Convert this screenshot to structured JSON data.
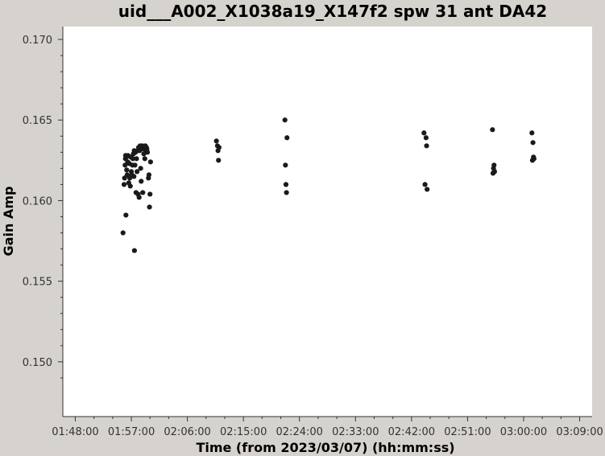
{
  "chart_data": {
    "type": "scatter",
    "title": "uid___A002_X1038a19_X147f2 spw 31 ant DA42",
    "xlabel": "Time (from 2023/03/07) (hh:mm:ss)",
    "ylabel": "Gain Amp",
    "xlim": [
      "01:46:00",
      "03:11:00"
    ],
    "ylim": [
      0.1466,
      0.1708
    ],
    "x_ticks": [
      "01:48:00",
      "01:57:00",
      "02:06:00",
      "02:15:00",
      "02:24:00",
      "02:33:00",
      "02:42:00",
      "02:51:00",
      "03:00:00",
      "03:09:00"
    ],
    "y_ticks": [
      "0.150",
      "0.155",
      "0.160",
      "0.165",
      "0.170"
    ],
    "grid": false,
    "marker_color": "#1a1a1a",
    "series": [
      {
        "points": [
          [
            "01:55:40",
            0.158
          ],
          [
            "01:55:50",
            0.161
          ],
          [
            "01:55:55",
            0.1614
          ],
          [
            "01:56:00",
            0.1622
          ],
          [
            "01:56:03",
            0.1626
          ],
          [
            "01:56:05",
            0.1628
          ],
          [
            "01:56:08",
            0.1591
          ],
          [
            "01:56:12",
            0.1627
          ],
          [
            "01:56:15",
            0.1619
          ],
          [
            "01:56:20",
            0.1616
          ],
          [
            "01:56:25",
            0.1624
          ],
          [
            "01:56:28",
            0.1628
          ],
          [
            "01:56:35",
            0.1611
          ],
          [
            "01:56:40",
            0.1623
          ],
          [
            "01:56:45",
            0.1614
          ],
          [
            "01:56:50",
            0.1609
          ],
          [
            "01:56:55",
            0.1627
          ],
          [
            "01:57:00",
            0.1618
          ],
          [
            "01:57:05",
            0.1616
          ],
          [
            "01:57:10",
            0.1622
          ],
          [
            "01:57:15",
            0.1626
          ],
          [
            "01:57:20",
            0.1629
          ],
          [
            "01:57:25",
            0.1615
          ],
          [
            "01:57:28",
            0.1631
          ],
          [
            "01:57:30",
            0.1569
          ],
          [
            "01:57:35",
            0.1622
          ],
          [
            "01:57:40",
            0.163
          ],
          [
            "01:57:45",
            0.1605
          ],
          [
            "01:57:50",
            0.1626
          ],
          [
            "01:57:55",
            0.1618
          ],
          [
            "01:58:00",
            0.1631
          ],
          [
            "01:58:05",
            0.1604
          ],
          [
            "01:58:10",
            0.1633
          ],
          [
            "01:58:15",
            0.1602
          ],
          [
            "01:58:20",
            0.1631
          ],
          [
            "01:58:25",
            0.1634
          ],
          [
            "01:58:30",
            0.162
          ],
          [
            "01:58:35",
            0.1612
          ],
          [
            "01:58:40",
            0.1632
          ],
          [
            "01:58:45",
            0.1634
          ],
          [
            "01:58:50",
            0.1605
          ],
          [
            "01:58:55",
            0.1633
          ],
          [
            "01:59:00",
            0.1629
          ],
          [
            "01:59:05",
            0.1632
          ],
          [
            "01:59:10",
            0.1626
          ],
          [
            "01:59:15",
            0.1634
          ],
          [
            "01:59:20",
            0.1631
          ],
          [
            "01:59:25",
            0.1633
          ],
          [
            "01:59:30",
            0.1632
          ],
          [
            "01:59:35",
            0.163
          ],
          [
            "01:59:45",
            0.1614
          ],
          [
            "01:59:50",
            0.1616
          ],
          [
            "01:59:55",
            0.1596
          ],
          [
            "02:00:00",
            0.1604
          ],
          [
            "02:00:05",
            0.1624
          ],
          [
            "02:10:40",
            0.1637
          ],
          [
            "02:10:50",
            0.1634
          ],
          [
            "02:10:55",
            0.1631
          ],
          [
            "02:11:00",
            0.1625
          ],
          [
            "02:11:05",
            0.1633
          ],
          [
            "02:21:40",
            0.165
          ],
          [
            "02:21:45",
            0.1622
          ],
          [
            "02:21:50",
            0.161
          ],
          [
            "02:21:55",
            0.1605
          ],
          [
            "02:22:00",
            0.1639
          ],
          [
            "02:44:00",
            0.1642
          ],
          [
            "02:44:10",
            0.161
          ],
          [
            "02:44:20",
            0.1639
          ],
          [
            "02:44:25",
            0.1634
          ],
          [
            "02:44:30",
            0.1607
          ],
          [
            "02:55:00",
            0.1644
          ],
          [
            "02:55:05",
            0.1617
          ],
          [
            "02:55:10",
            0.162
          ],
          [
            "02:55:15",
            0.1622
          ],
          [
            "02:55:20",
            0.1618
          ],
          [
            "03:01:20",
            0.1642
          ],
          [
            "03:01:25",
            0.1625
          ],
          [
            "03:01:30",
            0.1636
          ],
          [
            "03:01:35",
            0.1627
          ],
          [
            "03:01:40",
            0.1626
          ]
        ]
      }
    ]
  }
}
